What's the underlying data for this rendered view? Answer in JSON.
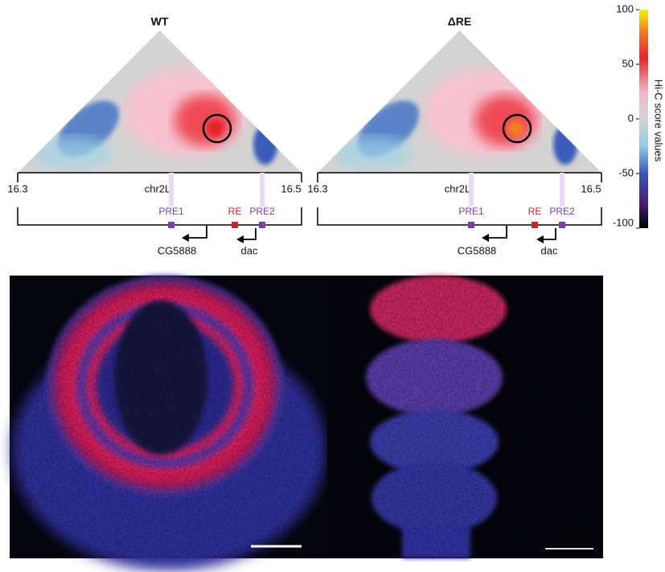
{
  "panels": [
    {
      "title": "WT",
      "axis": {
        "start": "16.3",
        "chrom": "chr2L",
        "end": "16.5"
      },
      "features": [
        "PRE1",
        "RE",
        "PRE2"
      ],
      "genes": [
        "CG5888",
        "dac"
      ]
    },
    {
      "title": "ΔRE",
      "axis": {
        "start": "16.3",
        "chrom": "chr2L",
        "end": "16.5"
      },
      "features": [
        "PRE1",
        "RE",
        "PRE2"
      ],
      "genes": [
        "CG5888",
        "dac"
      ]
    }
  ],
  "colorbar": {
    "label": "Hi-C score values",
    "ticks": [
      100,
      50,
      0,
      -50,
      -100
    ]
  }
}
